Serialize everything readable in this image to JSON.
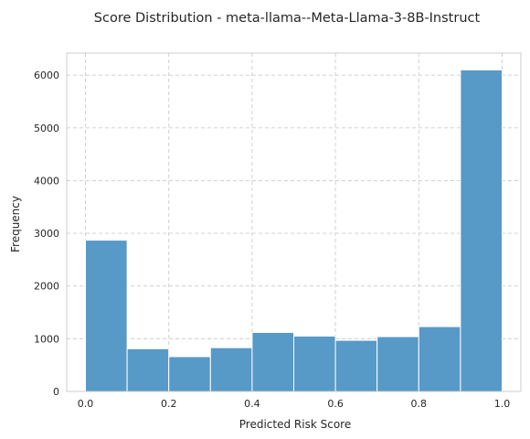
{
  "chart_data": {
    "type": "bar",
    "title": "Score Distribution - meta-llama--Meta-Llama-3-8B-Instruct",
    "xlabel": "Predicted Risk Score",
    "ylabel": "Frequency",
    "bins": [
      {
        "x0": 0.0,
        "x1": 0.1,
        "value": 2870
      },
      {
        "x0": 0.1,
        "x1": 0.2,
        "value": 810
      },
      {
        "x0": 0.2,
        "x1": 0.3,
        "value": 660
      },
      {
        "x0": 0.3,
        "x1": 0.4,
        "value": 830
      },
      {
        "x0": 0.4,
        "x1": 0.5,
        "value": 1120
      },
      {
        "x0": 0.5,
        "x1": 0.6,
        "value": 1050
      },
      {
        "x0": 0.6,
        "x1": 0.7,
        "value": 970
      },
      {
        "x0": 0.7,
        "x1": 0.8,
        "value": 1040
      },
      {
        "x0": 0.8,
        "x1": 0.9,
        "value": 1230
      },
      {
        "x0": 0.9,
        "x1": 1.0,
        "value": 6100
      }
    ],
    "xlim": [
      -0.045,
      1.045
    ],
    "ylim": [
      0,
      6420
    ],
    "xticks": [
      0.0,
      0.2,
      0.4,
      0.6,
      0.8,
      1.0
    ],
    "xtick_labels": [
      "0.0",
      "0.2",
      "0.4",
      "0.6",
      "0.8",
      "1.0"
    ],
    "yticks": [
      0,
      1000,
      2000,
      3000,
      4000,
      5000,
      6000
    ],
    "ytick_labels": [
      "0",
      "1000",
      "2000",
      "3000",
      "4000",
      "5000",
      "6000"
    ],
    "grid": true,
    "bar_color": "#5799c7"
  }
}
